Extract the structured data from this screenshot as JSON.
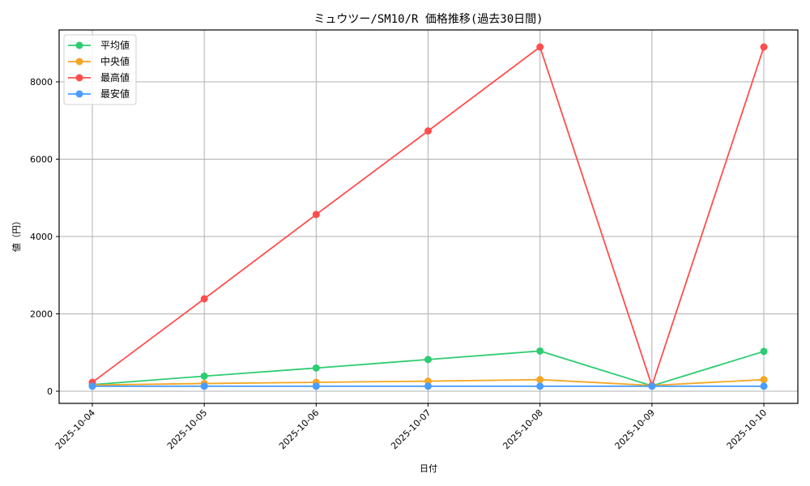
{
  "chart_data": {
    "type": "line",
    "title": "ミュウツー/SM10/R 価格推移(過去30日間)",
    "xlabel": "日付",
    "ylabel": "値（円）",
    "categories": [
      "2025-10-04",
      "2025-10-05",
      "2025-10-06",
      "2025-10-07",
      "2025-10-08",
      "2025-10-09",
      "2025-10-10"
    ],
    "series": [
      {
        "name": "平均値",
        "color": "#2ecc71",
        "values": [
          170,
          390,
          600,
          820,
          1040,
          140,
          1030
        ]
      },
      {
        "name": "中央値",
        "color": "#f5a623",
        "values": [
          160,
          200,
          230,
          260,
          300,
          150,
          300
        ]
      },
      {
        "name": "最高値",
        "color": "#ff4d4d",
        "values": [
          230,
          2390,
          4570,
          6730,
          8900,
          140,
          8900
        ]
      },
      {
        "name": "最安値",
        "color": "#4a9cff",
        "values": [
          130,
          130,
          130,
          130,
          130,
          130,
          130
        ]
      }
    ],
    "yticks": [
      0,
      2000,
      4000,
      6000,
      8000
    ],
    "ylim": [
      -320,
      9320
    ],
    "grid": true,
    "legend_position": "upper left",
    "x_tick_rotation": 45,
    "marker": "circle"
  }
}
